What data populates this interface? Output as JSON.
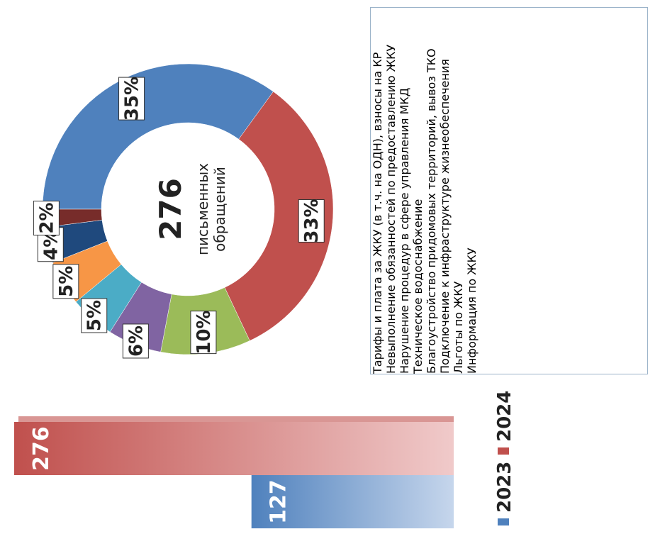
{
  "chart_data": [
    {
      "type": "donut",
      "center_value": "276",
      "center_lines": [
        "письменных",
        "обращений"
      ],
      "categories": [
        "Тарифы и плата за ЖКУ (в т.ч. на ОДН), взносы на КР",
        "Невыполнение обязанностей по предоставлению ЖКУ",
        "Нарушение процедур в сфере управления МКД",
        "Техническое водоснабжение",
        "Благоустройство придомовых территорий, вывоз ТКО",
        "Подключение к инфраструктуре жизнеобеспечения",
        "Льготы по ЖКУ",
        "Информация по ЖКУ"
      ],
      "values": [
        35,
        33,
        10,
        6,
        5,
        5,
        4,
        2
      ],
      "value_labels": [
        "35%",
        "33%",
        "10%",
        "6%",
        "5%",
        "5%",
        "4%",
        "2%"
      ],
      "colors": [
        "#4f81bd",
        "#c0504d",
        "#9bbb59",
        "#8064a2",
        "#4bacc6",
        "#f79646",
        "#1f497d",
        "#772c2a"
      ]
    },
    {
      "type": "bar",
      "series": [
        {
          "name": "2023",
          "color": "#4f81bd",
          "values": [
            127
          ]
        },
        {
          "name": "2024",
          "color": "#c0504d",
          "values": [
            276
          ]
        }
      ]
    }
  ]
}
